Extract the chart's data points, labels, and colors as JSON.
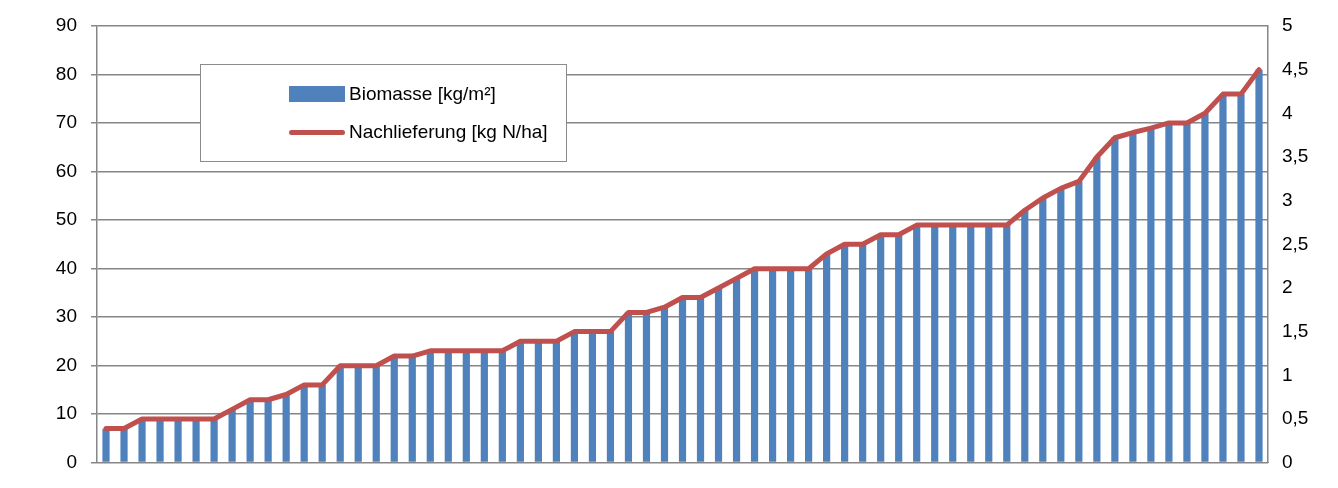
{
  "chart_data": {
    "type": "bar",
    "categories": [
      null,
      null,
      null,
      null,
      null,
      null,
      null,
      null,
      null,
      null,
      null,
      null,
      null,
      null,
      null,
      null,
      null,
      null,
      null,
      null,
      null,
      null,
      null,
      null,
      null,
      null,
      null,
      null,
      null,
      null,
      null,
      null,
      null,
      null,
      null,
      null,
      null,
      null,
      null,
      null,
      null,
      null,
      null,
      null,
      null,
      null,
      null,
      null,
      null,
      null,
      null,
      null,
      null,
      null,
      null,
      null,
      null,
      null,
      null,
      null,
      null,
      null,
      null,
      null,
      null
    ],
    "series": [
      {
        "name": "Biomasse [kg/m²]",
        "color": "#4f81bd",
        "values": [
          7,
          7,
          9,
          9,
          9,
          9,
          9,
          11,
          13,
          13,
          14,
          16,
          16,
          20,
          20,
          20,
          22,
          22,
          23,
          23,
          23,
          23,
          23,
          25,
          25,
          25,
          27,
          27,
          27,
          31,
          31,
          32,
          34,
          34,
          36,
          38,
          40,
          40,
          40,
          40,
          43,
          45,
          45,
          47,
          47,
          49,
          49,
          49,
          49,
          49,
          49,
          52,
          54.5,
          56.5,
          58,
          63,
          67,
          68,
          69,
          70,
          70,
          72,
          76,
          76,
          81
        ]
      },
      {
        "name": "Nachlieferung [kg N/ha]",
        "type": "line",
        "axis": "y2",
        "color": "#c0504d",
        "values": [
          0.39,
          0.39,
          0.5,
          0.5,
          0.5,
          0.5,
          0.5,
          0.61,
          0.72,
          0.72,
          0.78,
          0.89,
          0.89,
          1.11,
          1.11,
          1.11,
          1.22,
          1.22,
          1.28,
          1.28,
          1.28,
          1.28,
          1.28,
          1.39,
          1.39,
          1.39,
          1.5,
          1.5,
          1.5,
          1.72,
          1.72,
          1.78,
          1.89,
          1.89,
          2,
          2.11,
          2.22,
          2.22,
          2.22,
          2.22,
          2.39,
          2.5,
          2.5,
          2.61,
          2.61,
          2.72,
          2.72,
          2.72,
          2.72,
          2.72,
          2.72,
          2.89,
          3.03,
          3.14,
          3.22,
          3.5,
          3.72,
          3.78,
          3.83,
          3.89,
          3.89,
          4,
          4.22,
          4.22,
          4.5
        ]
      }
    ],
    "ylim": [
      0,
      90
    ],
    "yticks": [
      0,
      10,
      20,
      30,
      40,
      50,
      60,
      70,
      80,
      90
    ],
    "y2lim": [
      0,
      5
    ],
    "y2ticks": [
      0,
      {
        "value": 0.5,
        "label": "0,5"
      },
      1,
      {
        "value": 1.5,
        "label": "1,5"
      },
      2,
      {
        "value": 2.5,
        "label": "2,5"
      },
      3,
      {
        "value": 3.5,
        "label": "3,5"
      },
      4,
      {
        "value": 4.5,
        "label": "4,5"
      },
      5
    ],
    "grid": "y",
    "legend": "top left",
    "marker": "none"
  }
}
